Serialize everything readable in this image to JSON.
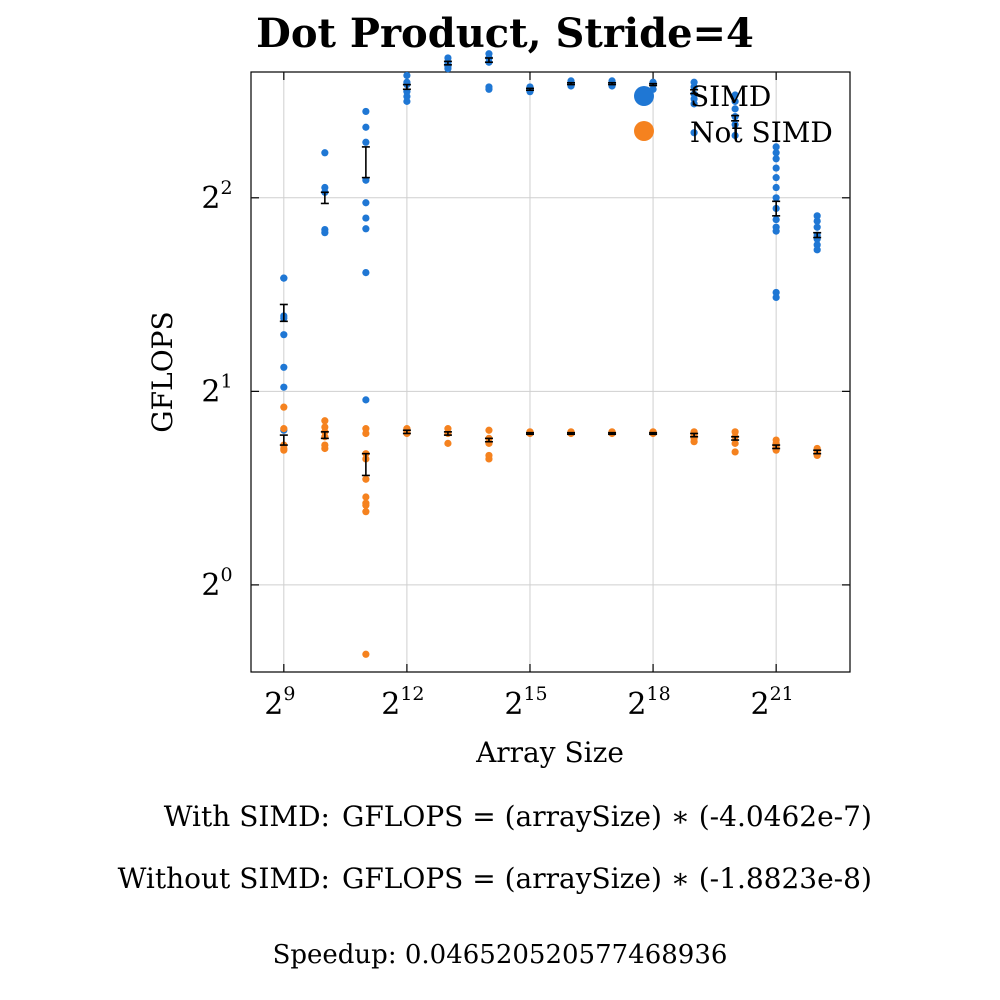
{
  "chart_data": {
    "type": "scatter",
    "title": "Dot Product, Stride=4",
    "xlabel": "Array Size",
    "ylabel": "GFLOPS",
    "x_scale": "log2",
    "y_scale": "log2",
    "xlim_log2": [
      8.2,
      22.8
    ],
    "ylim_log2": [
      -0.45,
      2.65
    ],
    "x_ticks": [
      {
        "value": 512,
        "base": "2",
        "exp": "9"
      },
      {
        "value": 4096,
        "base": "2",
        "exp": "12"
      },
      {
        "value": 32768,
        "base": "2",
        "exp": "15"
      },
      {
        "value": 262144,
        "base": "2",
        "exp": "18"
      },
      {
        "value": 2097152,
        "base": "2",
        "exp": "21"
      }
    ],
    "y_ticks": [
      {
        "value": 1,
        "base": "2",
        "exp": "0"
      },
      {
        "value": 2,
        "base": "2",
        "exp": "1"
      },
      {
        "value": 4,
        "base": "2",
        "exp": "2"
      }
    ],
    "grid": true,
    "legend_position": "top-right",
    "series": [
      {
        "name": "SIMD",
        "color": "#1f77d4",
        "points": [
          {
            "x": 512,
            "ys": [
              3.0,
              3.0,
              2.62,
              2.45,
              2.18,
              2.03,
              1.74,
              2.6
            ]
          },
          {
            "x": 1024,
            "ys": [
              4.7,
              4.15,
              4.08,
              3.57,
              3.53
            ]
          },
          {
            "x": 2048,
            "ys": [
              5.45,
              5.15,
              4.88,
              4.26,
              3.93,
              3.72,
              3.58,
              3.06,
              1.94
            ]
          },
          {
            "x": 4096,
            "ys": [
              6.2,
              6.05,
              6.0,
              5.85,
              5.75,
              5.65
            ]
          },
          {
            "x": 8192,
            "ys": [
              6.6,
              6.5,
              6.45,
              6.4,
              6.35
            ]
          },
          {
            "x": 16384,
            "ys": [
              6.7,
              6.6,
              6.5,
              5.95,
              5.9
            ]
          },
          {
            "x": 32768,
            "ys": [
              5.95,
              5.9,
              5.85
            ]
          },
          {
            "x": 65536,
            "ys": [
              6.08,
              6.02,
              5.97
            ]
          },
          {
            "x": 131072,
            "ys": [
              6.08,
              6.02,
              5.97
            ]
          },
          {
            "x": 262144,
            "ys": [
              6.05,
              6.0,
              5.9
            ]
          },
          {
            "x": 524288,
            "ys": [
              6.05,
              5.95,
              5.8,
              5.7,
              5.6,
              5.05
            ]
          },
          {
            "x": 1048576,
            "ys": [
              5.78,
              5.65,
              5.5,
              5.35,
              5.2,
              5.0
            ]
          },
          {
            "x": 2097152,
            "ys": [
              4.8,
              4.7,
              4.6,
              4.45,
              4.3,
              4.15,
              4.0,
              3.85,
              3.7,
              3.6,
              3.55,
              2.85,
              2.8
            ]
          },
          {
            "x": 4194304,
            "ys": [
              3.75,
              3.68,
              3.6,
              3.5,
              3.45,
              3.38,
              3.32
            ]
          }
        ],
        "means": [
          {
            "x": 512,
            "y": 2.65,
            "err": 0.08
          },
          {
            "x": 1024,
            "y": 4.0,
            "err": 0.08
          },
          {
            "x": 2048,
            "y": 4.55,
            "err": 0.25
          },
          {
            "x": 4096,
            "y": 5.95,
            "err": 0.05
          },
          {
            "x": 8192,
            "y": 6.48,
            "err": 0.04
          },
          {
            "x": 16384,
            "y": 6.55,
            "err": 0.05
          },
          {
            "x": 32768,
            "y": 5.9,
            "err": 0.02
          },
          {
            "x": 65536,
            "y": 6.02,
            "err": 0.02
          },
          {
            "x": 131072,
            "y": 6.02,
            "err": 0.02
          },
          {
            "x": 262144,
            "y": 6.0,
            "err": 0.02
          },
          {
            "x": 524288,
            "y": 5.85,
            "err": 0.04
          },
          {
            "x": 1048576,
            "y": 5.32,
            "err": 0.05
          },
          {
            "x": 2097152,
            "y": 3.85,
            "err": 0.1
          },
          {
            "x": 4194304,
            "y": 3.5,
            "err": 0.03
          }
        ]
      },
      {
        "name": "Not SIMD",
        "color": "#f5821f",
        "points": [
          {
            "x": 512,
            "ys": [
              1.89,
              1.75,
              1.65,
              1.63,
              1.62
            ]
          },
          {
            "x": 1024,
            "ys": [
              1.8,
              1.76,
              1.73,
              1.7,
              1.65,
              1.63
            ]
          },
          {
            "x": 2048,
            "ys": [
              1.75,
              1.72,
              1.6,
              1.57,
              1.46,
              1.37,
              1.34,
              1.33,
              1.3,
              0.78
            ]
          },
          {
            "x": 4096,
            "ys": [
              1.75,
              1.73,
              1.72
            ]
          },
          {
            "x": 8192,
            "ys": [
              1.75,
              1.72,
              1.66
            ]
          },
          {
            "x": 16384,
            "ys": [
              1.74,
              1.69,
              1.66,
              1.59,
              1.57
            ]
          },
          {
            "x": 32768,
            "ys": [
              1.73,
              1.72
            ]
          },
          {
            "x": 65536,
            "ys": [
              1.73,
              1.72
            ]
          },
          {
            "x": 131072,
            "ys": [
              1.73,
              1.72
            ]
          },
          {
            "x": 262144,
            "ys": [
              1.73,
              1.72
            ]
          },
          {
            "x": 524288,
            "ys": [
              1.73,
              1.71,
              1.69,
              1.67
            ]
          },
          {
            "x": 1048576,
            "ys": [
              1.73,
              1.7,
              1.66,
              1.61
            ]
          },
          {
            "x": 2097152,
            "ys": [
              1.68,
              1.66,
              1.64,
              1.62
            ]
          },
          {
            "x": 4194304,
            "ys": [
              1.63,
              1.61,
              1.59
            ]
          }
        ],
        "means": [
          {
            "x": 512,
            "y": 1.68,
            "err": 0.03
          },
          {
            "x": 1024,
            "y": 1.71,
            "err": 0.02
          },
          {
            "x": 2048,
            "y": 1.54,
            "err": 0.06
          },
          {
            "x": 4096,
            "y": 1.73,
            "err": 0.01
          },
          {
            "x": 8192,
            "y": 1.72,
            "err": 0.01
          },
          {
            "x": 16384,
            "y": 1.68,
            "err": 0.01
          },
          {
            "x": 32768,
            "y": 1.72,
            "err": 0.005
          },
          {
            "x": 65536,
            "y": 1.72,
            "err": 0.005
          },
          {
            "x": 131072,
            "y": 1.72,
            "err": 0.005
          },
          {
            "x": 262144,
            "y": 1.72,
            "err": 0.005
          },
          {
            "x": 524288,
            "y": 1.71,
            "err": 0.01
          },
          {
            "x": 1048576,
            "y": 1.69,
            "err": 0.01
          },
          {
            "x": 2097152,
            "y": 1.64,
            "err": 0.01
          },
          {
            "x": 4194304,
            "y": 1.61,
            "err": 0.01
          }
        ]
      }
    ]
  },
  "formulas": {
    "simd_label": "With SIMD:",
    "simd_eq": "GFLOPS = (arraySize) ∗ (-4.0462e-7)",
    "nosimd_label": "Without SIMD:",
    "nosimd_eq": "GFLOPS = (arraySize) ∗ (-1.8823e-8)",
    "speedup": "Speedup: 0.04652052057746893​6"
  }
}
